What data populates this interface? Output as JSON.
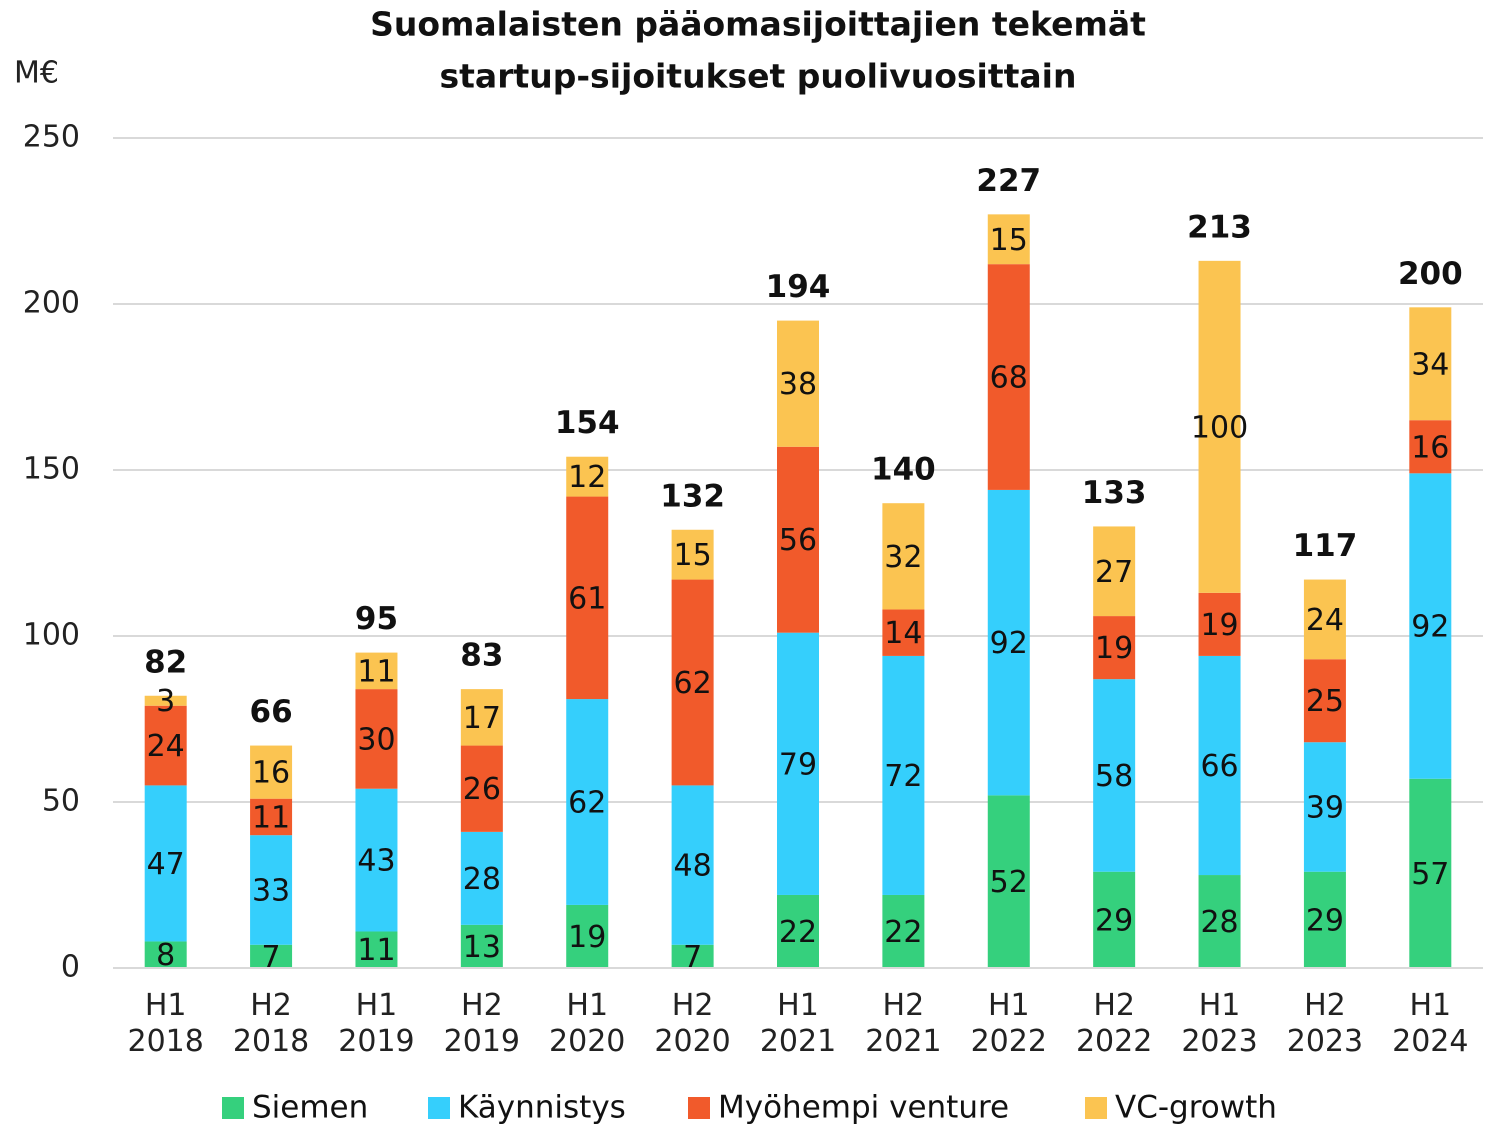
{
  "chart_data": {
    "type": "stacked_bar",
    "title": [
      "Suomalaisten pääomasijoittajien tekemät",
      "startup-sijoitukset puolivuosittain"
    ],
    "y_label": "M€",
    "categories": [
      "H1 2018",
      "H2 2018",
      "H1 2019",
      "H2 2019",
      "H1 2020",
      "H2 2020",
      "H1 2021",
      "H2 2021",
      "H1 2022",
      "H2 2022",
      "H1 2023",
      "H2 2023",
      "H1 2024"
    ],
    "series": [
      {
        "name": "Siemen",
        "color": "#35d07d",
        "values": [
          8,
          7,
          11,
          13,
          19,
          7,
          22,
          22,
          52,
          29,
          28,
          29,
          57
        ]
      },
      {
        "name": "Käynnistys",
        "color": "#35cffc",
        "values": [
          47,
          33,
          43,
          28,
          62,
          48,
          79,
          72,
          92,
          58,
          66,
          39,
          92
        ]
      },
      {
        "name": "Myöhempi venture",
        "color": "#f15a2b",
        "values": [
          24,
          11,
          30,
          26,
          61,
          62,
          56,
          14,
          68,
          19,
          19,
          25,
          16
        ]
      },
      {
        "name": "VC-growth",
        "color": "#fbc451",
        "values": [
          3,
          16,
          11,
          17,
          12,
          15,
          38,
          32,
          15,
          27,
          100,
          24,
          34
        ]
      }
    ],
    "totals": [
      82,
      66,
      95,
      83,
      154,
      132,
      194,
      140,
      227,
      133,
      213,
      117,
      200
    ],
    "ylim": [
      0,
      250
    ],
    "yticks": [
      0,
      50,
      100,
      150,
      200,
      250
    ],
    "grid": true,
    "legend": "bottom"
  }
}
